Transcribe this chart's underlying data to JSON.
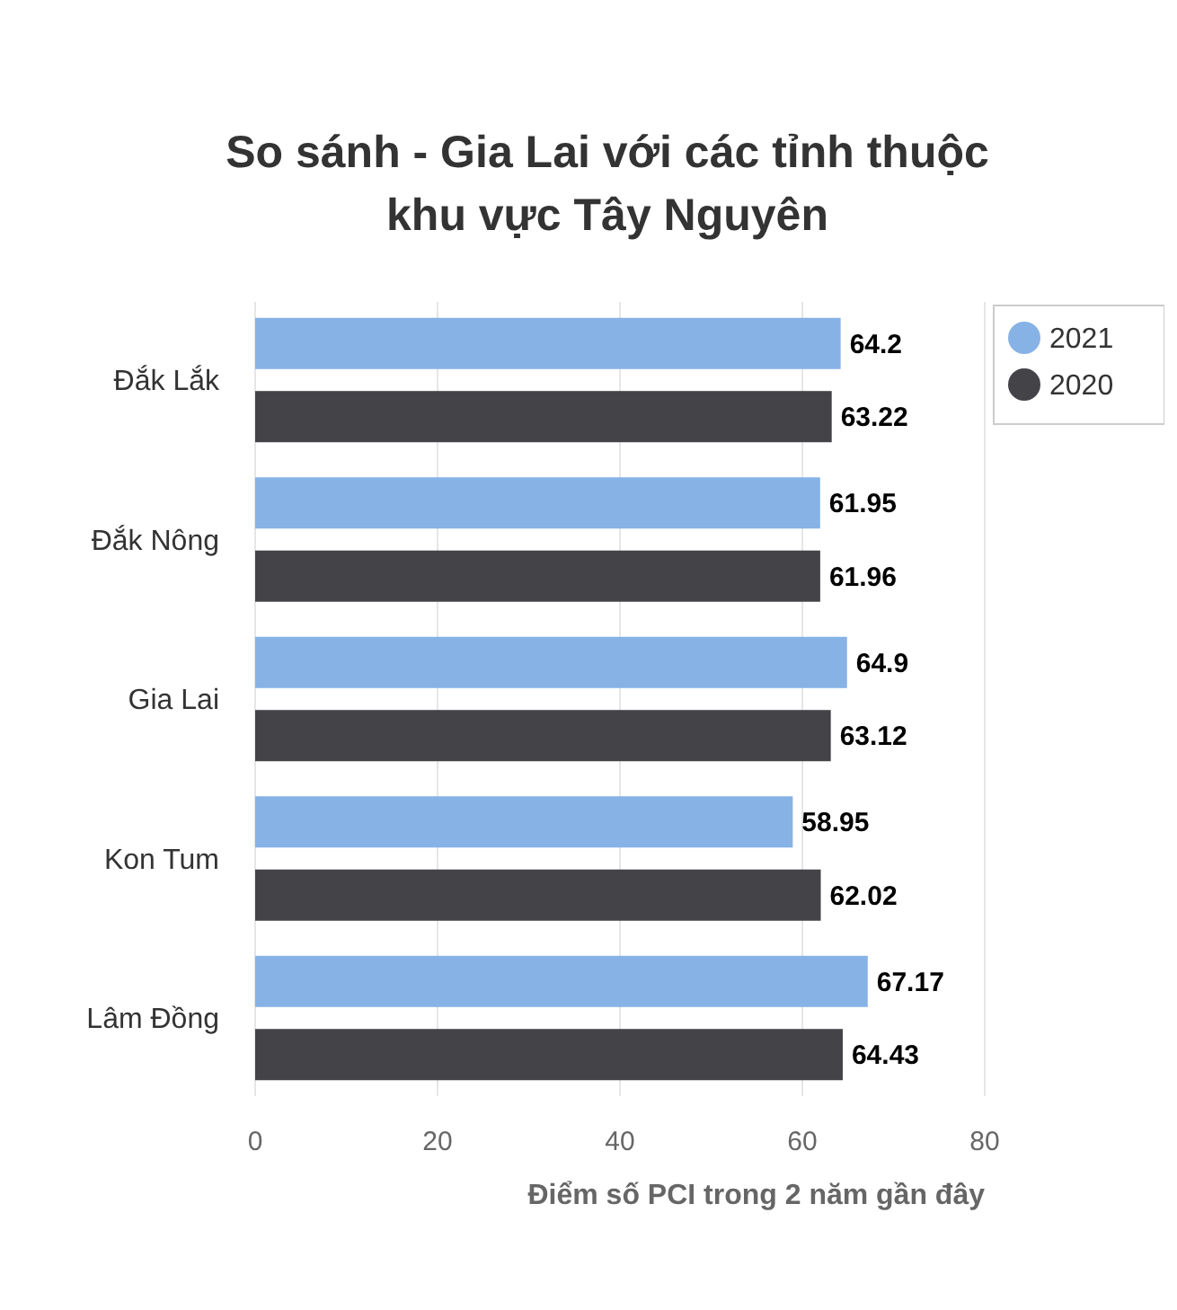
{
  "chart_data": {
    "type": "bar",
    "orientation": "horizontal",
    "title": "So sánh - Gia Lai với các tỉnh thuộc khu vực Tây Nguyên",
    "xlabel": "Điểm số PCI trong 2 năm gần đây",
    "categories": [
      "Đắk Lắk",
      "Đắk Nông",
      "Gia Lai",
      "Kon Tum",
      "Lâm Đồng"
    ],
    "series": [
      {
        "name": "2021",
        "color": "#86b2e6",
        "values": [
          64.2,
          61.95,
          64.9,
          58.95,
          67.17
        ]
      },
      {
        "name": "2020",
        "color": "#434348",
        "values": [
          63.22,
          61.96,
          63.12,
          62.02,
          64.43
        ]
      }
    ],
    "xlim": [
      0,
      80
    ],
    "xticks": [
      0,
      20,
      40,
      60,
      80
    ],
    "grid": "x",
    "data_labels": true,
    "legend": "right"
  }
}
